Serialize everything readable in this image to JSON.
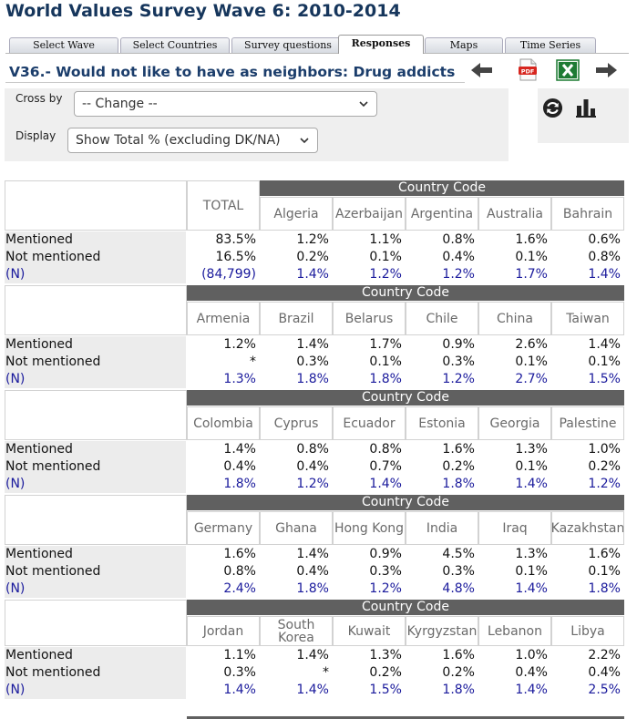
{
  "page_title": "World Values Survey Wave 6: 2010-2014",
  "tabs": [
    {
      "label": "Select Wave",
      "active": false
    },
    {
      "label": "Select Countries",
      "active": false
    },
    {
      "label": "Survey questions",
      "active": false
    },
    {
      "label": "Responses",
      "active": true
    },
    {
      "label": "Maps",
      "active": false
    },
    {
      "label": "Time Series",
      "active": false
    }
  ],
  "question_title": "V36.- Would not like to have as neighbors: Drug addicts",
  "toolbar": {
    "icons": [
      "arrow-left-icon",
      "pdf-icon",
      "excel-icon",
      "arrow-right-icon",
      "refresh-icon",
      "bar-chart-icon"
    ],
    "colors": {
      "excel": "#1e7b34",
      "pdf": "#d7261f",
      "arrow": "#444444"
    }
  },
  "controls": {
    "cross_by_label": "Cross by",
    "cross_by_value": "-- Change --",
    "display_label": "Display",
    "display_value": "Show Total % (excluding DK/NA)"
  },
  "table": {
    "band_label": "Country Code",
    "total_label": "TOTAL",
    "row_labels": [
      "Mentioned",
      "Not mentioned",
      "(N)"
    ],
    "total_values": [
      "83.5%",
      "16.5%",
      "(84,799)"
    ],
    "blocks": [
      {
        "countries": [
          "Algeria",
          "Azerbaijan",
          "Argentina",
          "Australia",
          "Bahrain"
        ],
        "mentioned": [
          "1.2%",
          "1.1%",
          "0.8%",
          "1.6%",
          "0.6%"
        ],
        "not_mentioned": [
          "0.2%",
          "0.1%",
          "0.4%",
          "0.1%",
          "0.8%"
        ],
        "n": [
          "1.4%",
          "1.2%",
          "1.2%",
          "1.7%",
          "1.4%"
        ]
      },
      {
        "countries": [
          "Armenia",
          "Brazil",
          "Belarus",
          "Chile",
          "China",
          "Taiwan"
        ],
        "mentioned": [
          "1.2%",
          "1.4%",
          "1.7%",
          "0.9%",
          "2.6%",
          "1.4%"
        ],
        "not_mentioned": [
          "*",
          "0.3%",
          "0.1%",
          "0.3%",
          "0.1%",
          "0.1%"
        ],
        "n": [
          "1.3%",
          "1.8%",
          "1.8%",
          "1.2%",
          "2.7%",
          "1.5%"
        ]
      },
      {
        "countries": [
          "Colombia",
          "Cyprus",
          "Ecuador",
          "Estonia",
          "Georgia",
          "Palestine"
        ],
        "mentioned": [
          "1.4%",
          "0.8%",
          "0.8%",
          "1.6%",
          "1.3%",
          "1.0%"
        ],
        "not_mentioned": [
          "0.4%",
          "0.4%",
          "0.7%",
          "0.2%",
          "0.1%",
          "0.2%"
        ],
        "n": [
          "1.8%",
          "1.2%",
          "1.4%",
          "1.8%",
          "1.4%",
          "1.2%"
        ]
      },
      {
        "countries": [
          "Germany",
          "Ghana",
          "Hong Kong",
          "India",
          "Iraq",
          "Kazakhstan"
        ],
        "mentioned": [
          "1.6%",
          "1.4%",
          "0.9%",
          "4.5%",
          "1.3%",
          "1.6%"
        ],
        "not_mentioned": [
          "0.8%",
          "0.4%",
          "0.3%",
          "0.3%",
          "0.1%",
          "0.1%"
        ],
        "n": [
          "2.4%",
          "1.8%",
          "1.2%",
          "4.8%",
          "1.4%",
          "1.8%"
        ]
      },
      {
        "countries": [
          "Jordan",
          "South Korea",
          "Kuwait",
          "Kyrgyzstan",
          "Lebanon",
          "Libya"
        ],
        "mentioned": [
          "1.1%",
          "1.4%",
          "1.3%",
          "1.6%",
          "1.0%",
          "2.2%"
        ],
        "not_mentioned": [
          "0.3%",
          "*",
          "0.2%",
          "0.2%",
          "0.4%",
          "0.4%"
        ],
        "n": [
          "1.4%",
          "1.4%",
          "1.5%",
          "1.8%",
          "1.4%",
          "2.5%"
        ]
      }
    ]
  }
}
